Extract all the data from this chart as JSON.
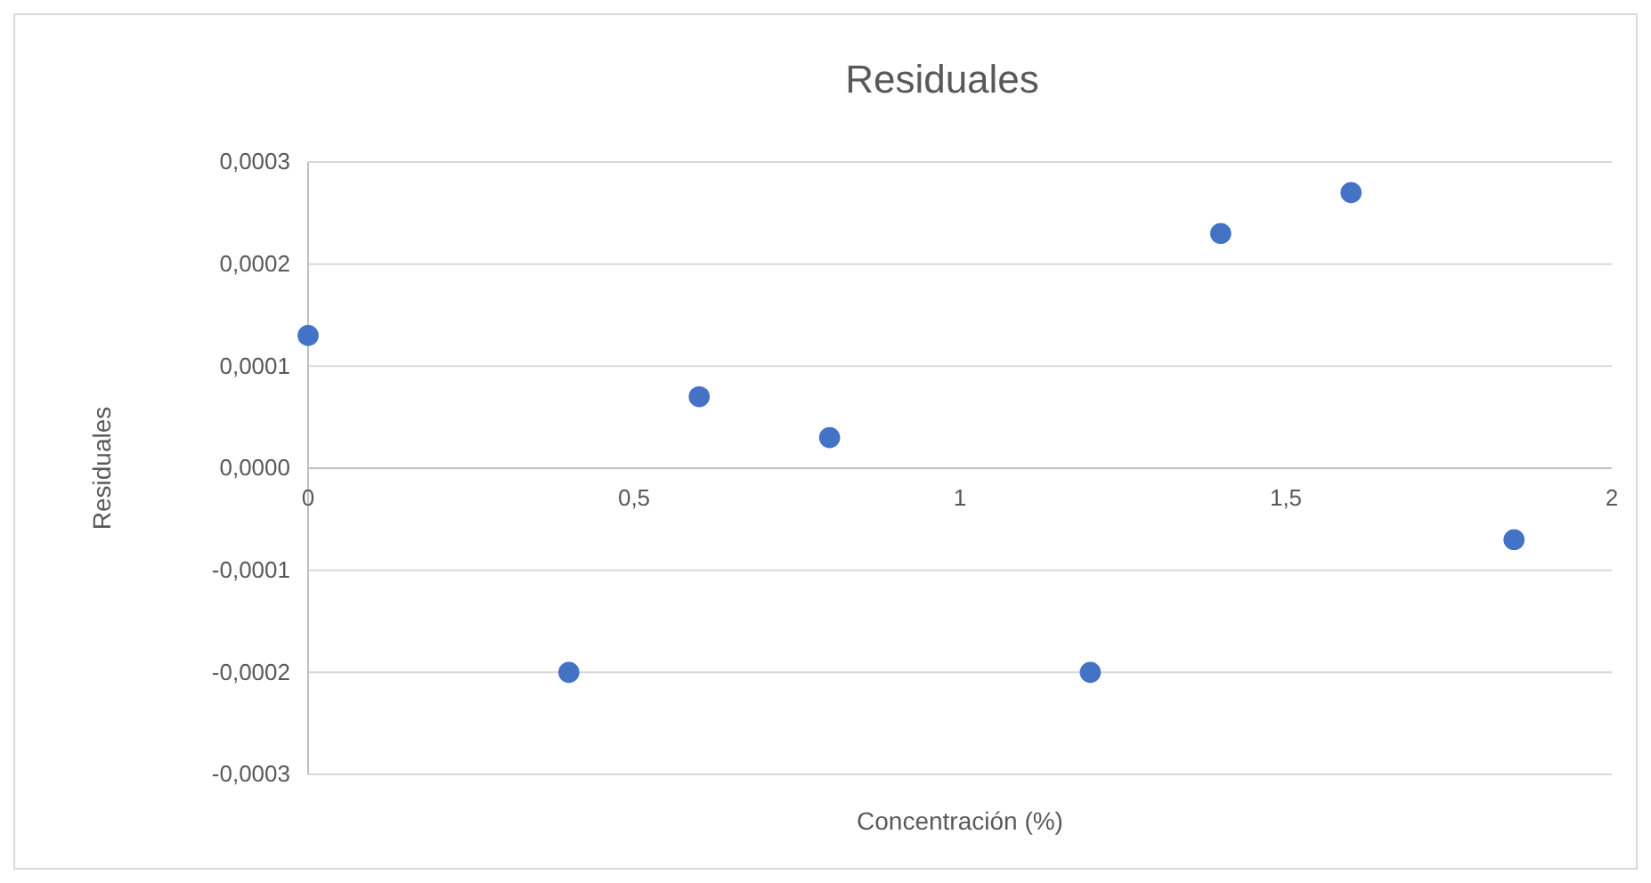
{
  "chart_data": {
    "type": "scatter",
    "title": "Residuales",
    "xlabel": "Concentración (%)",
    "ylabel": "Residuales",
    "x": [
      0,
      0.4,
      0.6,
      0.8,
      1.2,
      1.4,
      1.6,
      1.85
    ],
    "series": [
      {
        "color": "#4472c4",
        "values": [
          0.00013,
          -0.0002,
          7e-05,
          3e-05,
          -0.0002,
          0.00023,
          0.00027,
          -7e-05
        ]
      }
    ],
    "xlim": [
      0,
      2
    ],
    "xticks": [
      0,
      {
        "value": 0.5,
        "label": "0,5"
      },
      1,
      {
        "value": 1.5,
        "label": "1,5"
      },
      2
    ],
    "ylim": [
      -0.0003,
      0.0003
    ],
    "yticks": [
      {
        "value": -0.0003,
        "label": "-0,0003"
      },
      {
        "value": -0.0002,
        "label": "-0,0002"
      },
      {
        "value": -0.0001,
        "label": "-0,0001"
      },
      {
        "value": 0,
        "label": "0,0000"
      },
      {
        "value": 0.0001,
        "label": "0,0001"
      },
      {
        "value": 0.0002,
        "label": "0,0002"
      },
      {
        "value": 0.0003,
        "label": "0,0003"
      }
    ],
    "grid": "y",
    "marker": "circle"
  }
}
